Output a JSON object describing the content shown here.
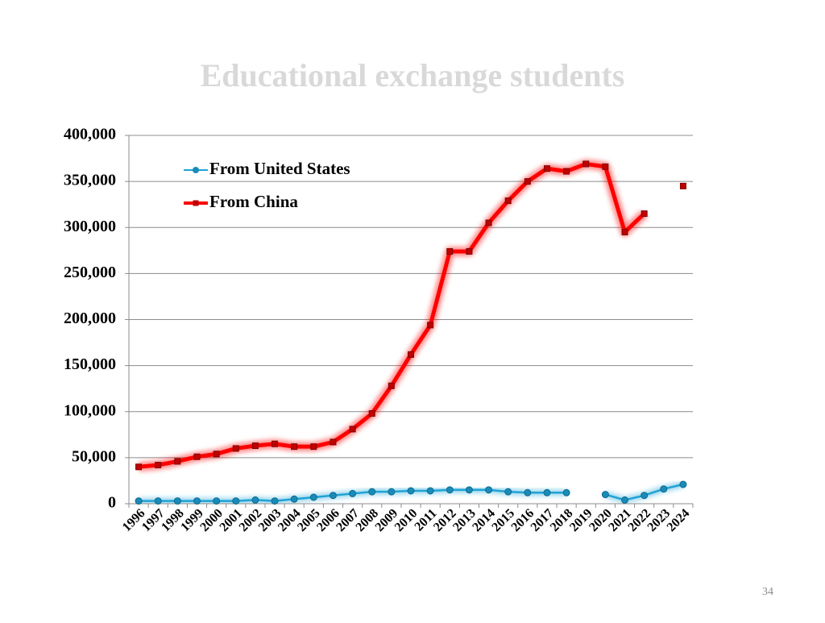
{
  "chart_data": {
    "type": "line",
    "title": "Educational exchange students",
    "categories": [
      "1996",
      "1997",
      "1998",
      "1999",
      "2000",
      "2001",
      "2002",
      "2003",
      "2004",
      "2005",
      "2006",
      "2007",
      "2008",
      "2009",
      "2010",
      "2011",
      "2012",
      "2013",
      "2014",
      "2015",
      "2016",
      "2017",
      "2018",
      "2019",
      "2020",
      "2021",
      "2022",
      "2023",
      "2024"
    ],
    "series": [
      {
        "name": "From United States",
        "color": "#1fa3d6",
        "values": [
          3000,
          3000,
          3000,
          3000,
          3000,
          3000,
          4000,
          3000,
          5000,
          7000,
          9000,
          11000,
          13000,
          13000,
          14000,
          14000,
          15000,
          15000,
          15000,
          13000,
          12000,
          12000,
          12000,
          null,
          10000,
          4000,
          9000,
          16000,
          21000
        ]
      },
      {
        "name": "From China",
        "color": "#ff0000",
        "values": [
          40000,
          42000,
          46000,
          51000,
          54000,
          60000,
          63000,
          65000,
          62000,
          62000,
          67000,
          81000,
          98000,
          128000,
          162000,
          194000,
          274000,
          274000,
          305000,
          329000,
          350000,
          364000,
          361000,
          369000,
          366000,
          295000,
          315000,
          null,
          345000
        ]
      }
    ],
    "ylim": [
      0,
      400000
    ],
    "yticks": [
      0,
      {
        "value": 50000,
        "label": "50,000"
      },
      {
        "value": 100000,
        "label": "100,000"
      },
      {
        "value": 150000,
        "label": "150,000"
      },
      {
        "value": 200000,
        "label": "200,000"
      },
      {
        "value": 250000,
        "label": "250,000"
      },
      {
        "value": 300000,
        "label": "300,000"
      },
      {
        "value": 350000,
        "label": "350,000"
      },
      {
        "value": 400000,
        "label": "400,000"
      }
    ],
    "grid": true,
    "legend": "top-left",
    "page_number": "34"
  }
}
